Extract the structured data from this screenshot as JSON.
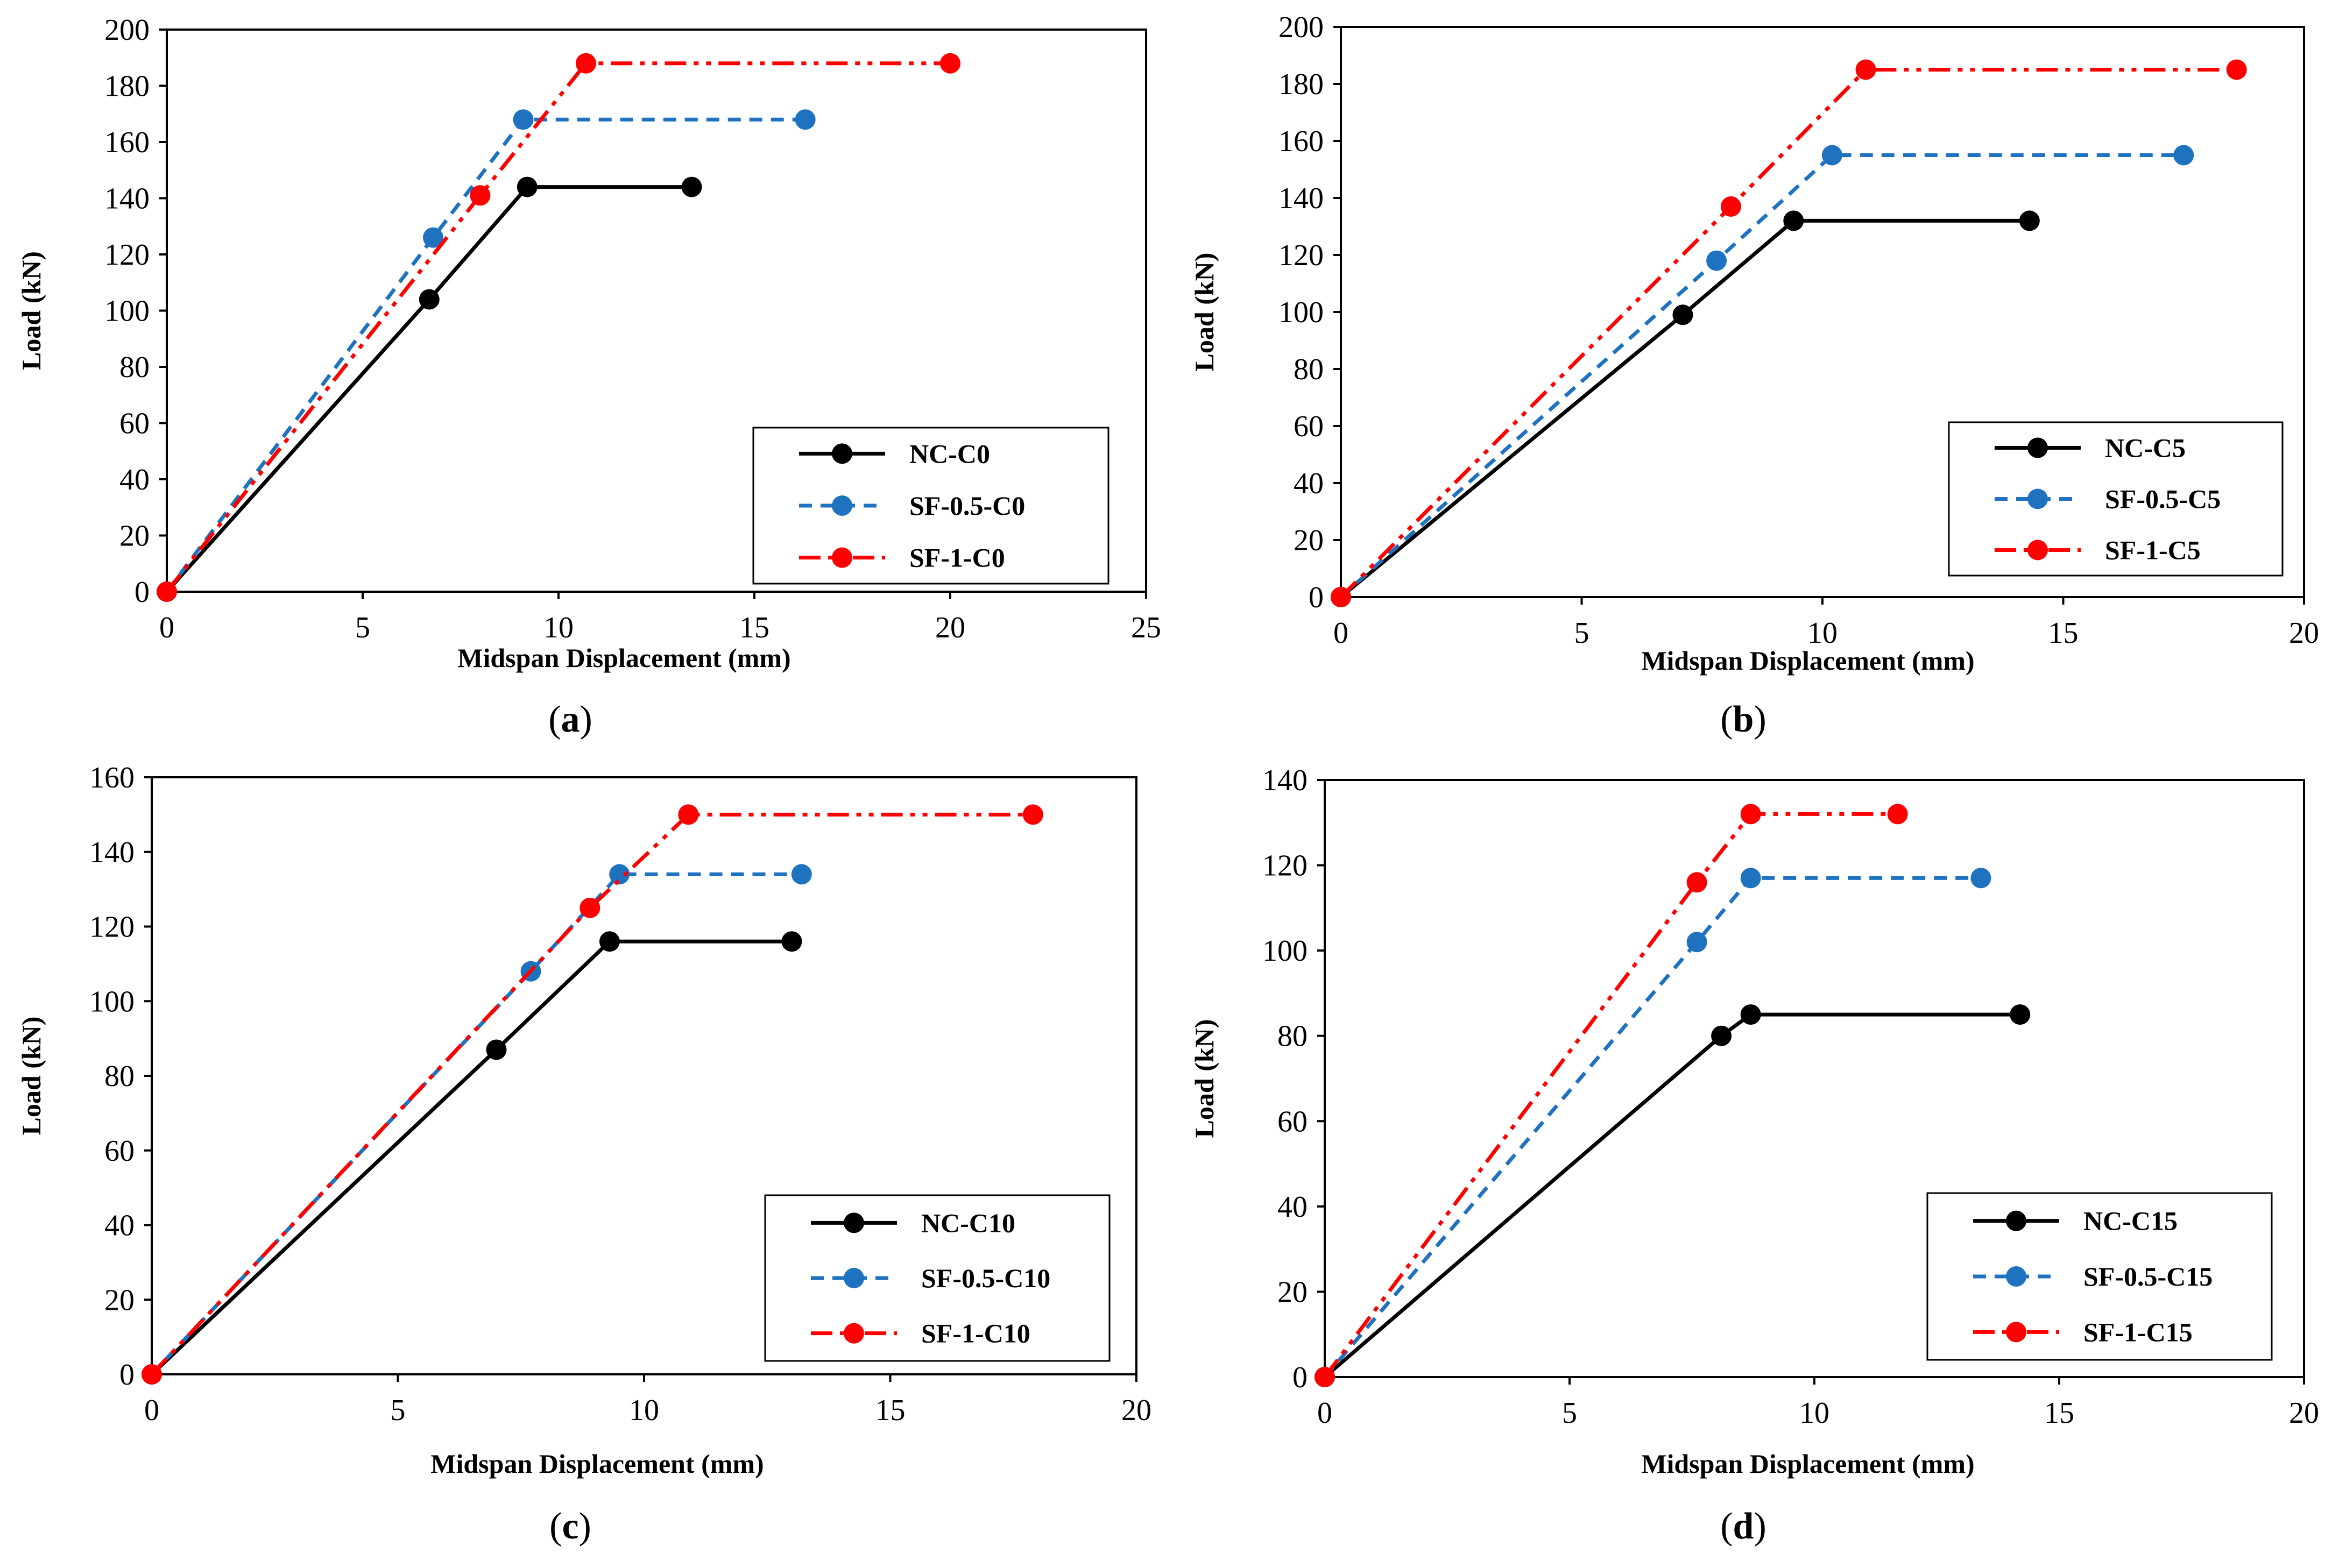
{
  "chart_data": [
    {
      "type": "line",
      "panel_label": "(a)",
      "panel_letter": "a",
      "xlabel": "Midspan Displacement (mm)",
      "ylabel": "Load (kN)",
      "xlim": [
        0,
        25
      ],
      "ylim": [
        0,
        200
      ],
      "xticks": [
        0,
        5,
        10,
        15,
        20,
        25
      ],
      "yticks": [
        0,
        20,
        40,
        60,
        80,
        100,
        120,
        140,
        160,
        180,
        200
      ],
      "legend_position": "bottom-right",
      "series": [
        {
          "name": "NC-C0",
          "color": "#000000",
          "style": "solid",
          "x": [
            0,
            6.7,
            9.2,
            13.4
          ],
          "y": [
            0,
            104,
            144,
            144
          ]
        },
        {
          "name": "SF-0.5-C0",
          "color": "#1F72BF",
          "style": "dashed",
          "x": [
            0,
            6.8,
            9.1,
            16.3
          ],
          "y": [
            0,
            126,
            168,
            168
          ]
        },
        {
          "name": "SF-1-C0",
          "color": "#FF0000",
          "style": "dashdotdot",
          "x": [
            0,
            8.0,
            10.7,
            20.0
          ],
          "y": [
            0,
            141,
            188,
            188
          ]
        }
      ]
    },
    {
      "type": "line",
      "panel_label": "(b)",
      "panel_letter": "b",
      "xlabel": "Midspan Displacement (mm)",
      "ylabel": "Load (kN)",
      "xlim": [
        0,
        20
      ],
      "ylim": [
        0,
        200
      ],
      "xticks": [
        0,
        5,
        10,
        15,
        20
      ],
      "yticks": [
        0,
        20,
        40,
        60,
        80,
        100,
        120,
        140,
        160,
        180,
        200
      ],
      "legend_position": "bottom-right",
      "series": [
        {
          "name": "NC-C5",
          "color": "#000000",
          "style": "solid",
          "x": [
            0,
            7.1,
            9.4,
            14.3
          ],
          "y": [
            0,
            99,
            132,
            132
          ]
        },
        {
          "name": "SF-0.5-C5",
          "color": "#1F72BF",
          "style": "dashed",
          "x": [
            0,
            7.8,
            10.2,
            17.5
          ],
          "y": [
            0,
            118,
            155,
            155
          ]
        },
        {
          "name": "SF-1-C5",
          "color": "#FF0000",
          "style": "dashdotdot",
          "x": [
            0,
            8.1,
            10.9,
            18.6
          ],
          "y": [
            0,
            137,
            185,
            185
          ]
        }
      ]
    },
    {
      "type": "line",
      "panel_label": "(c)",
      "panel_letter": "c",
      "xlabel": "Midspan Displacement (mm)",
      "ylabel": "Load (kN)",
      "xlim": [
        0,
        20
      ],
      "ylim": [
        0,
        160
      ],
      "xticks": [
        0,
        5,
        10,
        15,
        20
      ],
      "yticks": [
        0,
        20,
        40,
        60,
        80,
        100,
        120,
        140,
        160
      ],
      "legend_position": "bottom-right",
      "series": [
        {
          "name": "NC-C10",
          "color": "#000000",
          "style": "solid",
          "x": [
            0,
            7.0,
            9.3,
            13.0
          ],
          "y": [
            0,
            87,
            116,
            116
          ]
        },
        {
          "name": "SF-0.5-C10",
          "color": "#1F72BF",
          "style": "dashed",
          "x": [
            0,
            7.7,
            9.5,
            13.2
          ],
          "y": [
            0,
            108,
            134,
            134
          ]
        },
        {
          "name": "SF-1-C10",
          "color": "#FF0000",
          "style": "dashdotdot",
          "x": [
            0,
            8.9,
            10.9,
            17.9
          ],
          "y": [
            0,
            125,
            150,
            150
          ]
        }
      ]
    },
    {
      "type": "line",
      "panel_label": "(d)",
      "panel_letter": "d",
      "xlabel": "Midspan Displacement (mm)",
      "ylabel": "Load (kN)",
      "xlim": [
        0,
        20
      ],
      "ylim": [
        0,
        140
      ],
      "xticks": [
        0,
        5,
        10,
        15,
        20
      ],
      "yticks": [
        0,
        20,
        40,
        60,
        80,
        100,
        120,
        140
      ],
      "legend_position": "bottom-right",
      "series": [
        {
          "name": "NC-C15",
          "color": "#000000",
          "style": "solid",
          "x": [
            0,
            8.1,
            8.7,
            14.2
          ],
          "y": [
            0,
            80,
            85,
            85
          ]
        },
        {
          "name": "SF-0.5-C15",
          "color": "#1F72BF",
          "style": "dashed",
          "x": [
            0,
            7.6,
            8.7,
            13.4
          ],
          "y": [
            0,
            102,
            117,
            117
          ]
        },
        {
          "name": "SF-1-C15",
          "color": "#FF0000",
          "style": "dashdotdot",
          "x": [
            0,
            7.6,
            8.7,
            11.7
          ],
          "y": [
            0,
            116,
            132,
            132
          ]
        }
      ]
    }
  ]
}
